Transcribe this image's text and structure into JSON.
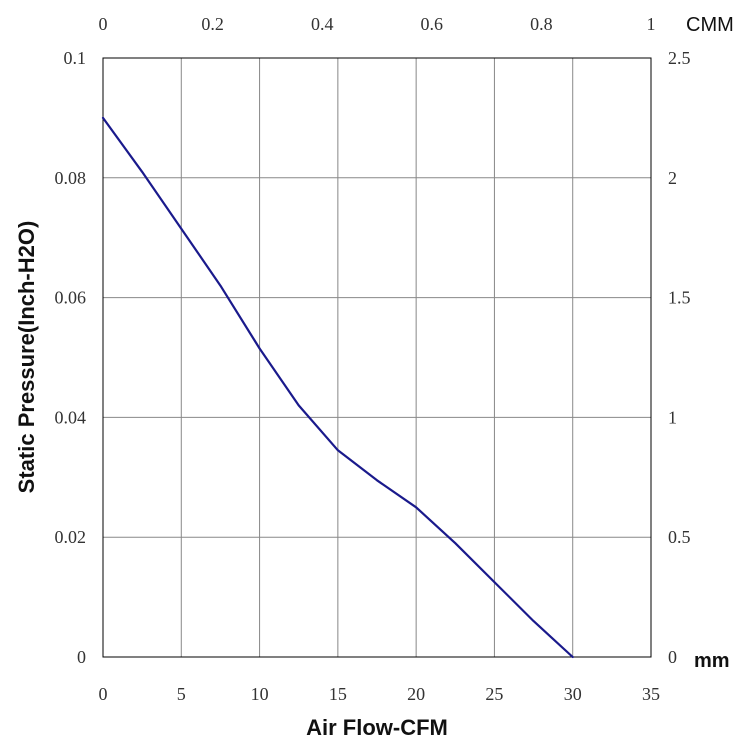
{
  "chart_data": {
    "type": "line",
    "xlabel": "Air Flow-CFM",
    "ylabel": "Static Pressure(Inch-H2O)",
    "xlim": [
      0,
      35
    ],
    "ylim": [
      0,
      0.1
    ],
    "x_ticks": [
      "0",
      "5",
      "10",
      "15",
      "20",
      "25",
      "30",
      "35"
    ],
    "y_ticks": [
      "0",
      "0.02",
      "0.04",
      "0.06",
      "0.08",
      "0.1"
    ],
    "top_axis": {
      "unit": "CMM",
      "ticks": [
        "0",
        "0.2",
        "0.4",
        "0.6",
        "0.8",
        "1"
      ]
    },
    "right_axis": {
      "unit": "mm",
      "ticks": [
        "0",
        "0.5",
        "1",
        "1.5",
        "2",
        "2.5"
      ]
    },
    "grid": true,
    "series": [
      {
        "color": "#1a1a8c",
        "x": [
          0,
          2.5,
          5,
          7.5,
          10,
          12.5,
          15,
          17.5,
          20,
          22.5,
          25,
          27.5,
          30
        ],
        "y": [
          0.09,
          0.081,
          0.0715,
          0.062,
          0.0515,
          0.042,
          0.0345,
          0.0295,
          0.025,
          0.019,
          0.0125,
          0.006,
          0.0
        ]
      }
    ]
  }
}
